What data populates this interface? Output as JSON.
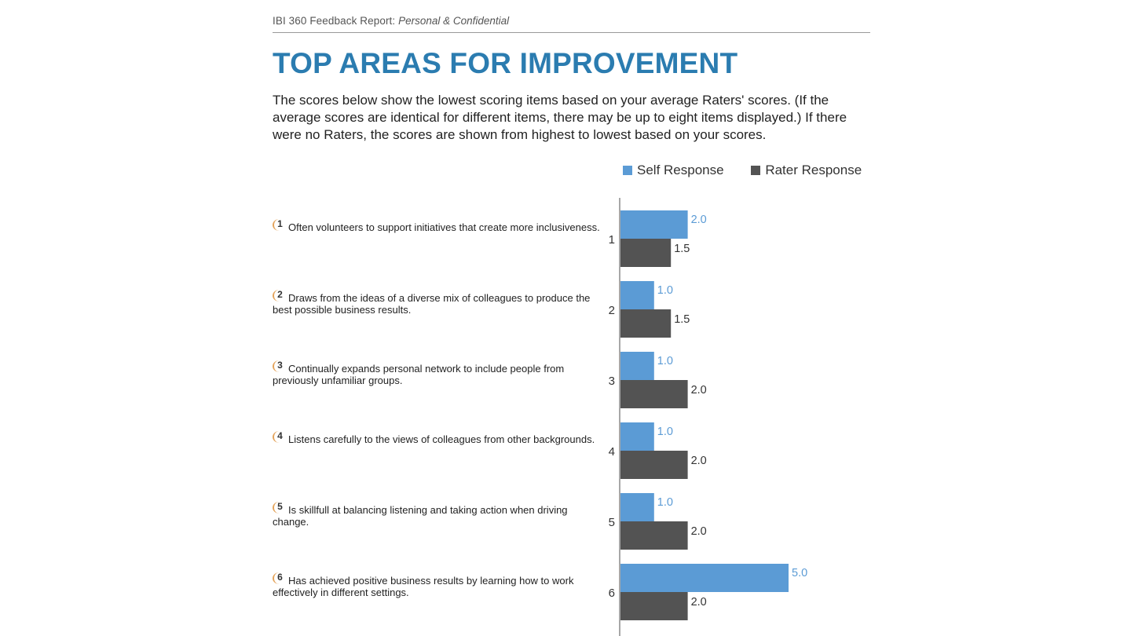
{
  "header": {
    "report_label": "IBI 360 Feedback Report: ",
    "confidential": "Personal & Confidential"
  },
  "page_title": "TOP AREAS FOR IMPROVEMENT",
  "intro": "The scores below show the lowest scoring items based on your average Raters' scores. (If the average scores are identical for different items, there may be up to eight items displayed.) If there were no Raters, the scores are shown from highest to lowest based on your scores.",
  "items": [
    {
      "num": "1",
      "text": "Often volunteers to support initiatives that create more inclusiveness."
    },
    {
      "num": "2",
      "text": "Draws from the ideas of a diverse mix of colleagues to produce the best possible business results."
    },
    {
      "num": "3",
      "text": "Continually expands personal network to include people from previously unfamiliar groups."
    },
    {
      "num": "4",
      "text": "Listens carefully to the views of colleagues from other backgrounds."
    },
    {
      "num": "5",
      "text": "Is skillfull at balancing listening and taking action when driving change."
    },
    {
      "num": "6",
      "text": "Has achieved positive business results by learning how to work effectively in different settings."
    }
  ],
  "colors": {
    "title": "#2b7cb0",
    "self": "#5b9bd5",
    "rater": "#535353",
    "accent": "#e4a35a"
  },
  "chart_data": {
    "type": "bar",
    "orientation": "horizontal",
    "categories": [
      "1",
      "2",
      "3",
      "4",
      "5",
      "6"
    ],
    "series": [
      {
        "name": "Self Response",
        "values": [
          2.0,
          1.0,
          1.0,
          1.0,
          1.0,
          5.0
        ]
      },
      {
        "name": "Rater Response",
        "values": [
          1.5,
          1.5,
          2.0,
          2.0,
          2.0,
          2.0
        ]
      }
    ],
    "value_labels": {
      "Self Response": [
        "2.0",
        "1.0",
        "1.0",
        "1.0",
        "1.0",
        "5.0"
      ],
      "Rater Response": [
        "1.5",
        "1.5",
        "2.0",
        "2.0",
        "2.0",
        "2.0"
      ]
    },
    "xlim": [
      0,
      5
    ],
    "grid": false,
    "legend_position": "top-right"
  }
}
